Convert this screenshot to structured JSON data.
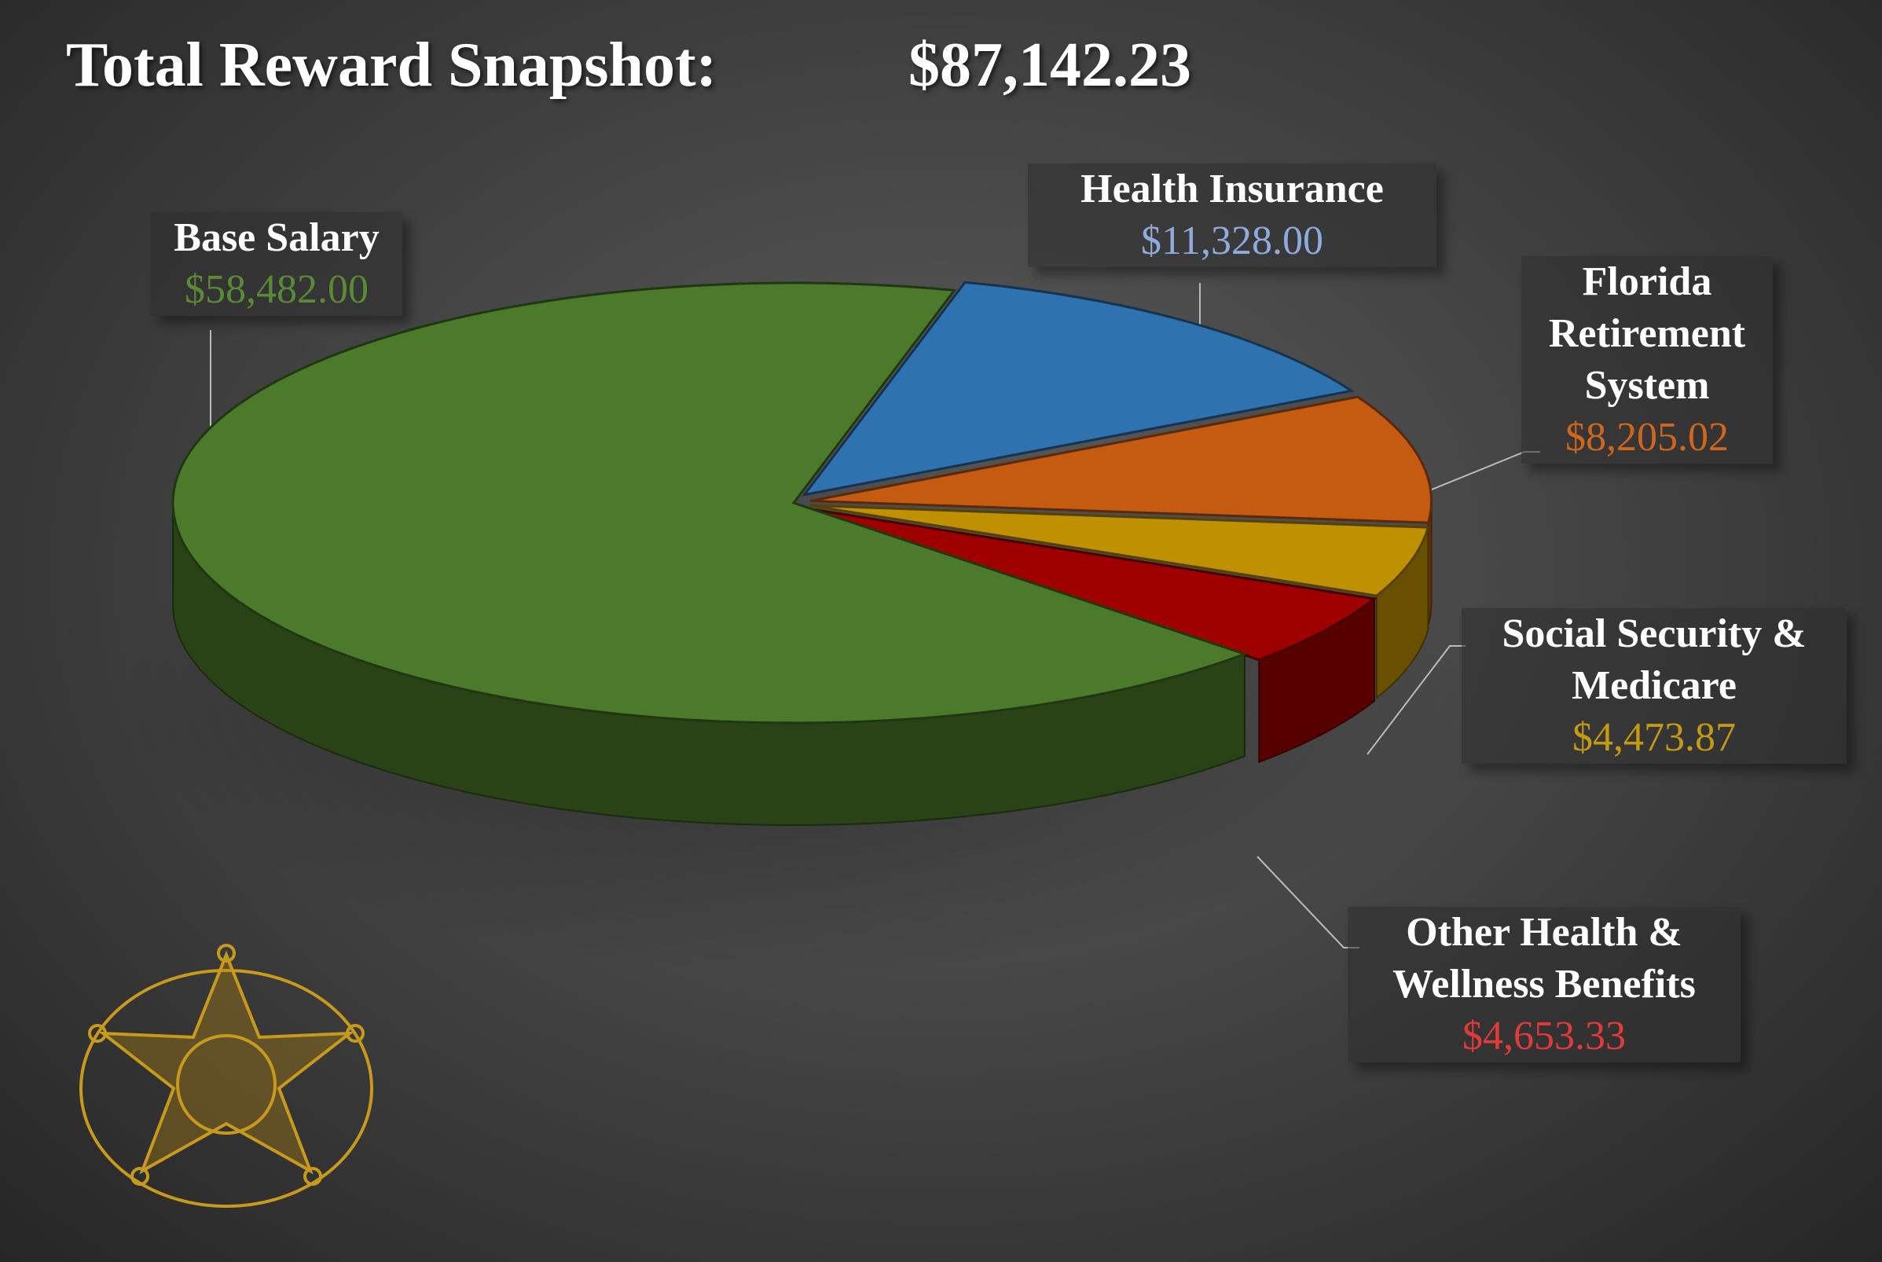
{
  "chart_data": {
    "type": "pie",
    "title": "Total Reward Snapshot:",
    "subtitle": "$87,142.23",
    "categories": [
      "Base Salary",
      "Health Insurance",
      "Florida Retirement System",
      "Social Security & Medicare",
      "Other Health & Wellness Benefits"
    ],
    "values": [
      58482.0,
      11328.0,
      8205.02,
      4473.87,
      4653.33
    ],
    "value_labels": [
      "$58,482.00",
      "$11,328.00",
      "$8,205.02",
      "$4,473.87",
      "$4,653.33"
    ],
    "colors": [
      "#4a7a2a",
      "#2e72b0",
      "#c55a11",
      "#bf9000",
      "#9e0000"
    ],
    "label_colors": [
      "#5a8a34",
      "#8faadc",
      "#d0661c",
      "#c39a10",
      "#e23a3a"
    ]
  }
}
